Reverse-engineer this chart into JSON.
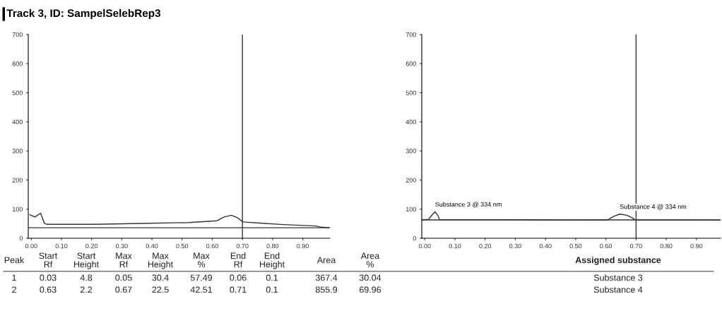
{
  "chart_data": [
    {
      "type": "line",
      "title": "Track 3, ID: SampelSelebRep3",
      "series": [
        {
          "color": "#333333",
          "x": [
            -0.005,
            0.012,
            0.031,
            0.043,
            0.051,
            0.208,
            0.365,
            0.522,
            0.616,
            0.639,
            0.663,
            0.682,
            0.702,
            0.757,
            0.835,
            0.945,
            0.96,
            0.99
          ],
          "values": [
            81,
            73,
            86,
            52,
            48,
            48,
            51,
            54,
            60,
            73,
            79,
            71,
            56,
            52,
            47,
            42,
            38,
            36
          ]
        }
      ],
      "xlim": [
        -0.01,
        0.99
      ],
      "ylim": [
        0,
        700
      ],
      "xticks": [
        {
          "value": 0,
          "label": "0.00"
        },
        {
          "value": 0.1,
          "label": "0.10"
        },
        {
          "value": 0.2,
          "label": "0.20"
        },
        {
          "value": 0.3,
          "label": "0.30"
        },
        {
          "value": 0.4,
          "label": "0.40"
        },
        {
          "value": 0.5,
          "label": "0.50"
        },
        {
          "value": 0.6,
          "label": "0.60"
        },
        {
          "value": 0.7,
          "label": "0.70"
        },
        {
          "value": 0.8,
          "label": "0.80"
        },
        {
          "value": 0.9,
          "label": "0.90"
        }
      ],
      "yticks": [
        0,
        100,
        200,
        300,
        400,
        500,
        600,
        700
      ],
      "ref_lines": [
        {
          "axis": "x",
          "value": 0.7,
          "color": "#333333"
        },
        {
          "axis": "y",
          "value": 36,
          "color": "#333333"
        }
      ],
      "annotations": [
        "Peak",
        "Start\nRf",
        "Start\nHeight",
        "Max\nRf",
        "Max\nHeight",
        "Max\n%",
        "End\nRf",
        "End\nHeight",
        "Area",
        "Area\n%",
        "Assigned substance",
        "1",
        "0.03",
        "4.8",
        "0.05",
        "30.4",
        "57.49",
        "0.06",
        "0.1",
        "367.4",
        "30.04",
        "Substance 3",
        "2",
        "0.63",
        "2.2",
        "0.67",
        "22.5",
        "42.51",
        "0.71",
        "0.1",
        "855.9",
        "69.96",
        "Substance 4"
      ]
    },
    {
      "type": "line",
      "series": [
        {
          "color": "#333333",
          "x": [
            -0.01,
            0.013,
            0.024,
            0.034,
            0.044,
            0.049,
            0.252,
            0.483,
            0.606,
            0.625,
            0.646,
            0.669,
            0.688,
            0.696,
            0.977
          ],
          "values": [
            63,
            65,
            80,
            91,
            77,
            64,
            64,
            62,
            63,
            75,
            83,
            79,
            70,
            63,
            62
          ]
        }
      ],
      "xlim": [
        -0.01,
        0.98
      ],
      "ylim": [
        0,
        700
      ],
      "xticks": [
        {
          "value": 0,
          "label": "0.00"
        },
        {
          "value": 0.1,
          "label": "0.10"
        },
        {
          "value": 0.2,
          "label": "0.20"
        },
        {
          "value": 0.3,
          "label": "0.30"
        },
        {
          "value": 0.4,
          "label": "0.40"
        },
        {
          "value": 0.5,
          "label": "0.50"
        },
        {
          "value": 0.6,
          "label": "0.60"
        },
        {
          "value": 0.7,
          "label": "0.70"
        },
        {
          "value": 0.8,
          "label": "0.80"
        },
        {
          "value": 0.9,
          "label": "0.90"
        }
      ],
      "yticks": [
        0,
        100,
        200,
        300,
        400,
        500,
        600,
        700
      ],
      "ref_lines": [
        {
          "axis": "x",
          "value": 0.7,
          "color": "#333333"
        },
        {
          "axis": "y",
          "value": 63,
          "color": "#333333"
        }
      ],
      "annotations": [
        {
          "text": "Substance 3 @ 334 nm",
          "x": 0.034,
          "y": 91
        },
        {
          "text": "Substance 4 @ 334 nm",
          "x": 0.646,
          "y": 83
        }
      ]
    }
  ]
}
